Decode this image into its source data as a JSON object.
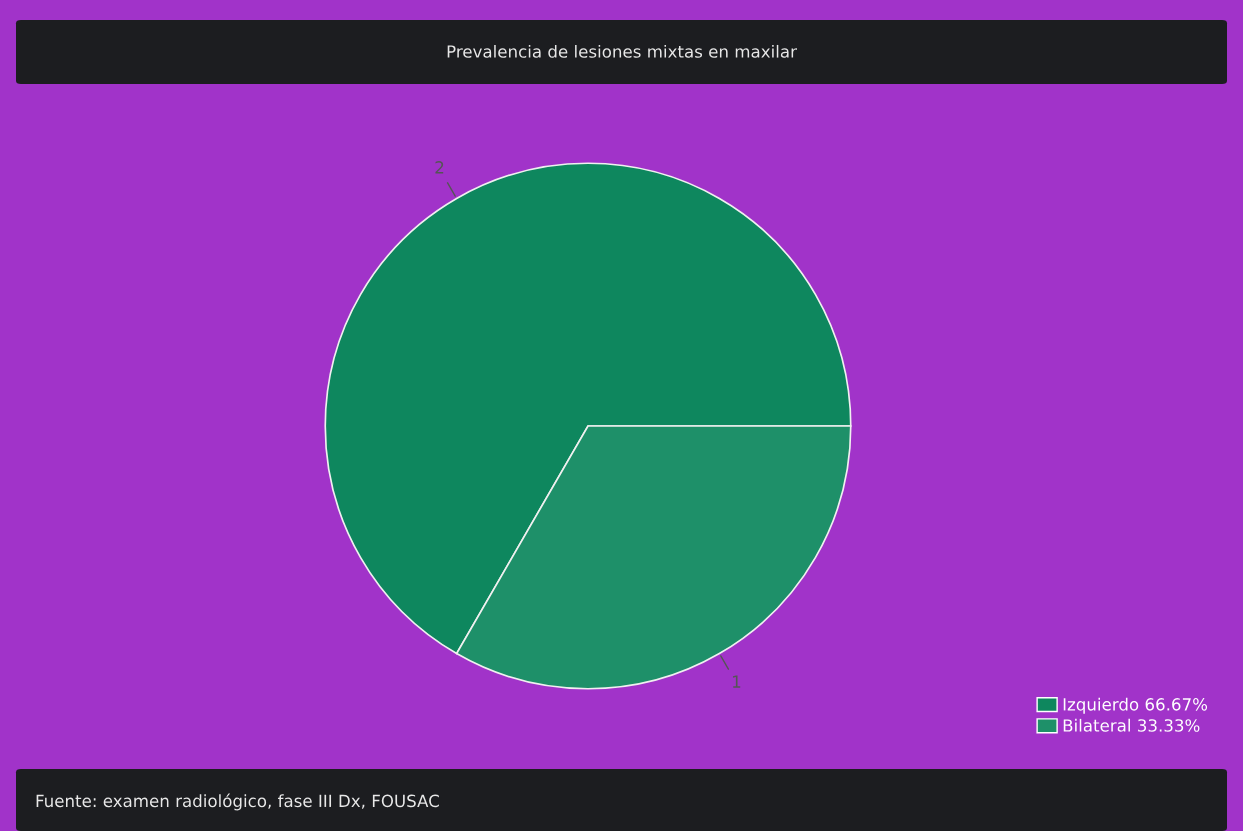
{
  "chart_data": {
    "type": "pie",
    "title": "Prevalencia de lesiones mixtas en maxilar",
    "categories": [
      "Izquierdo 66.67%",
      "Bilateral 33.33%"
    ],
    "values": [
      2,
      1
    ],
    "colors": [
      "#0e875e",
      "#1e9069"
    ],
    "data_labels": true,
    "legend": "bottom right",
    "annotations": [
      "Fuente: examen radiológico, fase III Dx, FOUSAC"
    ]
  }
}
